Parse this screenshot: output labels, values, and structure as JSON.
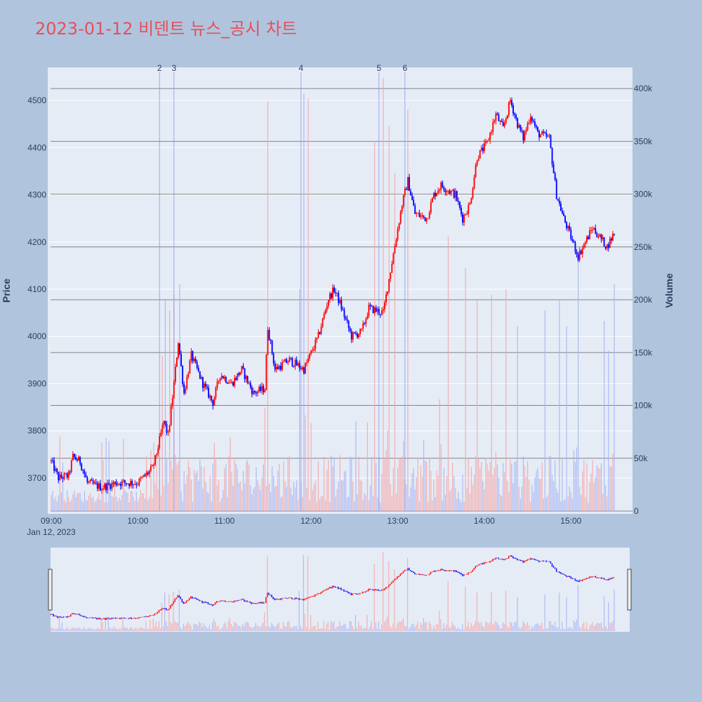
{
  "chart_data": {
    "type": "candlestick",
    "title": "2023-01-12 비덴트 뉴스_공시 차트",
    "date_label": "Jan 12, 2023",
    "price_axis": {
      "label": "Price",
      "range": [
        3630,
        4570
      ],
      "ticks": [
        3700,
        3800,
        3900,
        4000,
        4100,
        4200,
        4300,
        4400,
        4500
      ]
    },
    "volume_axis": {
      "label": "Volume",
      "range": [
        0,
        420000
      ],
      "ticks": [
        0,
        50000,
        100000,
        150000,
        200000,
        250000,
        300000,
        350000,
        400000
      ],
      "tick_labels": [
        "0",
        "50k",
        "100k",
        "150k",
        "200k",
        "250k",
        "300k",
        "350k",
        "400k"
      ]
    },
    "time_axis": {
      "range": [
        "09:00",
        "15:30"
      ],
      "ticks": [
        "09:00",
        "10:00",
        "11:00",
        "12:00",
        "13:00",
        "14:00",
        "15:00"
      ]
    },
    "colors": {
      "up": "#ff0000",
      "down": "#0000ff",
      "up_volume": "#f4a6a6",
      "down_volume": "#a6b4f4",
      "title": "#e6505a",
      "background": "#b0c4de",
      "plot_bg": "#e5ecf6"
    },
    "grid": true,
    "legend": "none",
    "news_markers": [
      {
        "label": "2",
        "time": "10:15"
      },
      {
        "label": "3",
        "time": "10:25"
      },
      {
        "label": "4",
        "time": "11:53"
      },
      {
        "label": "5",
        "time": "12:47"
      },
      {
        "label": "6",
        "time": "13:05"
      }
    ],
    "price_anchors": [
      [
        "09:00",
        3735
      ],
      [
        "09:05",
        3700
      ],
      [
        "09:12",
        3705
      ],
      [
        "09:15",
        3745
      ],
      [
        "09:20",
        3735
      ],
      [
        "09:25",
        3690
      ],
      [
        "09:35",
        3680
      ],
      [
        "09:45",
        3690
      ],
      [
        "10:00",
        3690
      ],
      [
        "10:05",
        3705
      ],
      [
        "10:10",
        3720
      ],
      [
        "10:12",
        3740
      ],
      [
        "10:18",
        3820
      ],
      [
        "10:21",
        3790
      ],
      [
        "10:25",
        3900
      ],
      [
        "10:28",
        3990
      ],
      [
        "10:32",
        3880
      ],
      [
        "10:37",
        3960
      ],
      [
        "10:45",
        3900
      ],
      [
        "10:52",
        3860
      ],
      [
        "10:57",
        3920
      ],
      [
        "11:05",
        3900
      ],
      [
        "11:12",
        3930
      ],
      [
        "11:20",
        3880
      ],
      [
        "11:28",
        3890
      ],
      [
        "11:30",
        4020
      ],
      [
        "11:35",
        3930
      ],
      [
        "11:45",
        3950
      ],
      [
        "11:55",
        3930
      ],
      [
        "12:05",
        4000
      ],
      [
        "12:12",
        4080
      ],
      [
        "12:16",
        4100
      ],
      [
        "12:20",
        4070
      ],
      [
        "12:28",
        4000
      ],
      [
        "12:35",
        4010
      ],
      [
        "12:40",
        4060
      ],
      [
        "12:50",
        4050
      ],
      [
        "12:55",
        4140
      ],
      [
        "13:03",
        4280
      ],
      [
        "13:07",
        4330
      ],
      [
        "13:12",
        4260
      ],
      [
        "13:20",
        4250
      ],
      [
        "13:25",
        4300
      ],
      [
        "13:30",
        4320
      ],
      [
        "13:40",
        4300
      ],
      [
        "13:45",
        4250
      ],
      [
        "13:50",
        4280
      ],
      [
        "13:55",
        4380
      ],
      [
        "14:02",
        4410
      ],
      [
        "14:08",
        4470
      ],
      [
        "14:13",
        4440
      ],
      [
        "14:18",
        4500
      ],
      [
        "14:23",
        4450
      ],
      [
        "14:27",
        4420
      ],
      [
        "14:32",
        4470
      ],
      [
        "14:37",
        4430
      ],
      [
        "14:45",
        4420
      ],
      [
        "14:50",
        4300
      ],
      [
        "14:55",
        4250
      ],
      [
        "15:00",
        4210
      ],
      [
        "15:05",
        4170
      ],
      [
        "15:10",
        4200
      ],
      [
        "15:15",
        4230
      ],
      [
        "15:20",
        4210
      ],
      [
        "15:25",
        4190
      ],
      [
        "15:30",
        4220
      ]
    ],
    "volume_spikes": [
      [
        "10:17",
        147000
      ],
      [
        "10:19",
        200000
      ],
      [
        "10:22",
        190000
      ],
      [
        "10:25",
        205000
      ],
      [
        "10:29",
        215000
      ],
      [
        "11:30",
        388000
      ],
      [
        "11:52",
        210000
      ],
      [
        "11:55",
        395000
      ],
      [
        "11:58",
        390000
      ],
      [
        "12:44",
        350000
      ],
      [
        "12:50",
        410000
      ],
      [
        "12:54",
        365000
      ],
      [
        "12:58",
        320000
      ],
      [
        "13:07",
        380000
      ],
      [
        "13:35",
        260000
      ],
      [
        "13:47",
        230000
      ],
      [
        "13:55",
        200000
      ],
      [
        "14:05",
        205000
      ],
      [
        "14:15",
        210000
      ],
      [
        "14:23",
        175000
      ],
      [
        "14:42",
        190000
      ],
      [
        "14:52",
        200000
      ],
      [
        "14:57",
        175000
      ],
      [
        "15:05",
        240000
      ],
      [
        "15:23",
        180000
      ],
      [
        "15:26",
        152000
      ],
      [
        "15:30",
        215000
      ]
    ]
  }
}
